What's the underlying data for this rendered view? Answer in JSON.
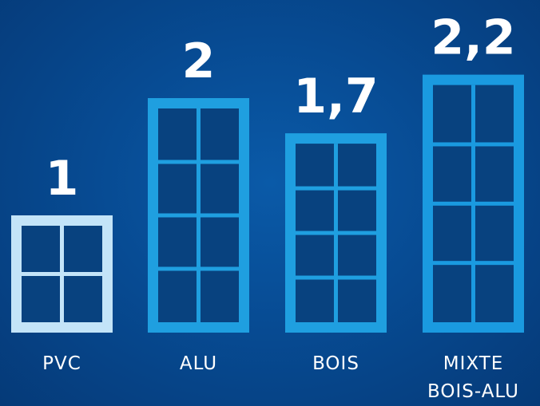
{
  "chart_data": {
    "type": "bar",
    "title": "",
    "xlabel": "",
    "ylabel": "",
    "categories": [
      "PVC",
      "ALU",
      "BOIS",
      "MIXTE BOIS-ALU"
    ],
    "category_lines": [
      [
        "PVC"
      ],
      [
        "ALU"
      ],
      [
        "BOIS"
      ],
      [
        "MIXTE",
        "BOIS-ALU"
      ]
    ],
    "values": [
      1,
      2,
      1.7,
      2.2
    ],
    "value_labels": [
      "1",
      "2",
      "1,7",
      "2,2"
    ],
    "grid": false,
    "legend": "none",
    "colors": {
      "background": "#074b93",
      "pane": "#08427f",
      "frames": [
        "#c3e4f8",
        "#1f9fe0",
        "#1f9fe0",
        "#1a9ae0"
      ]
    }
  }
}
